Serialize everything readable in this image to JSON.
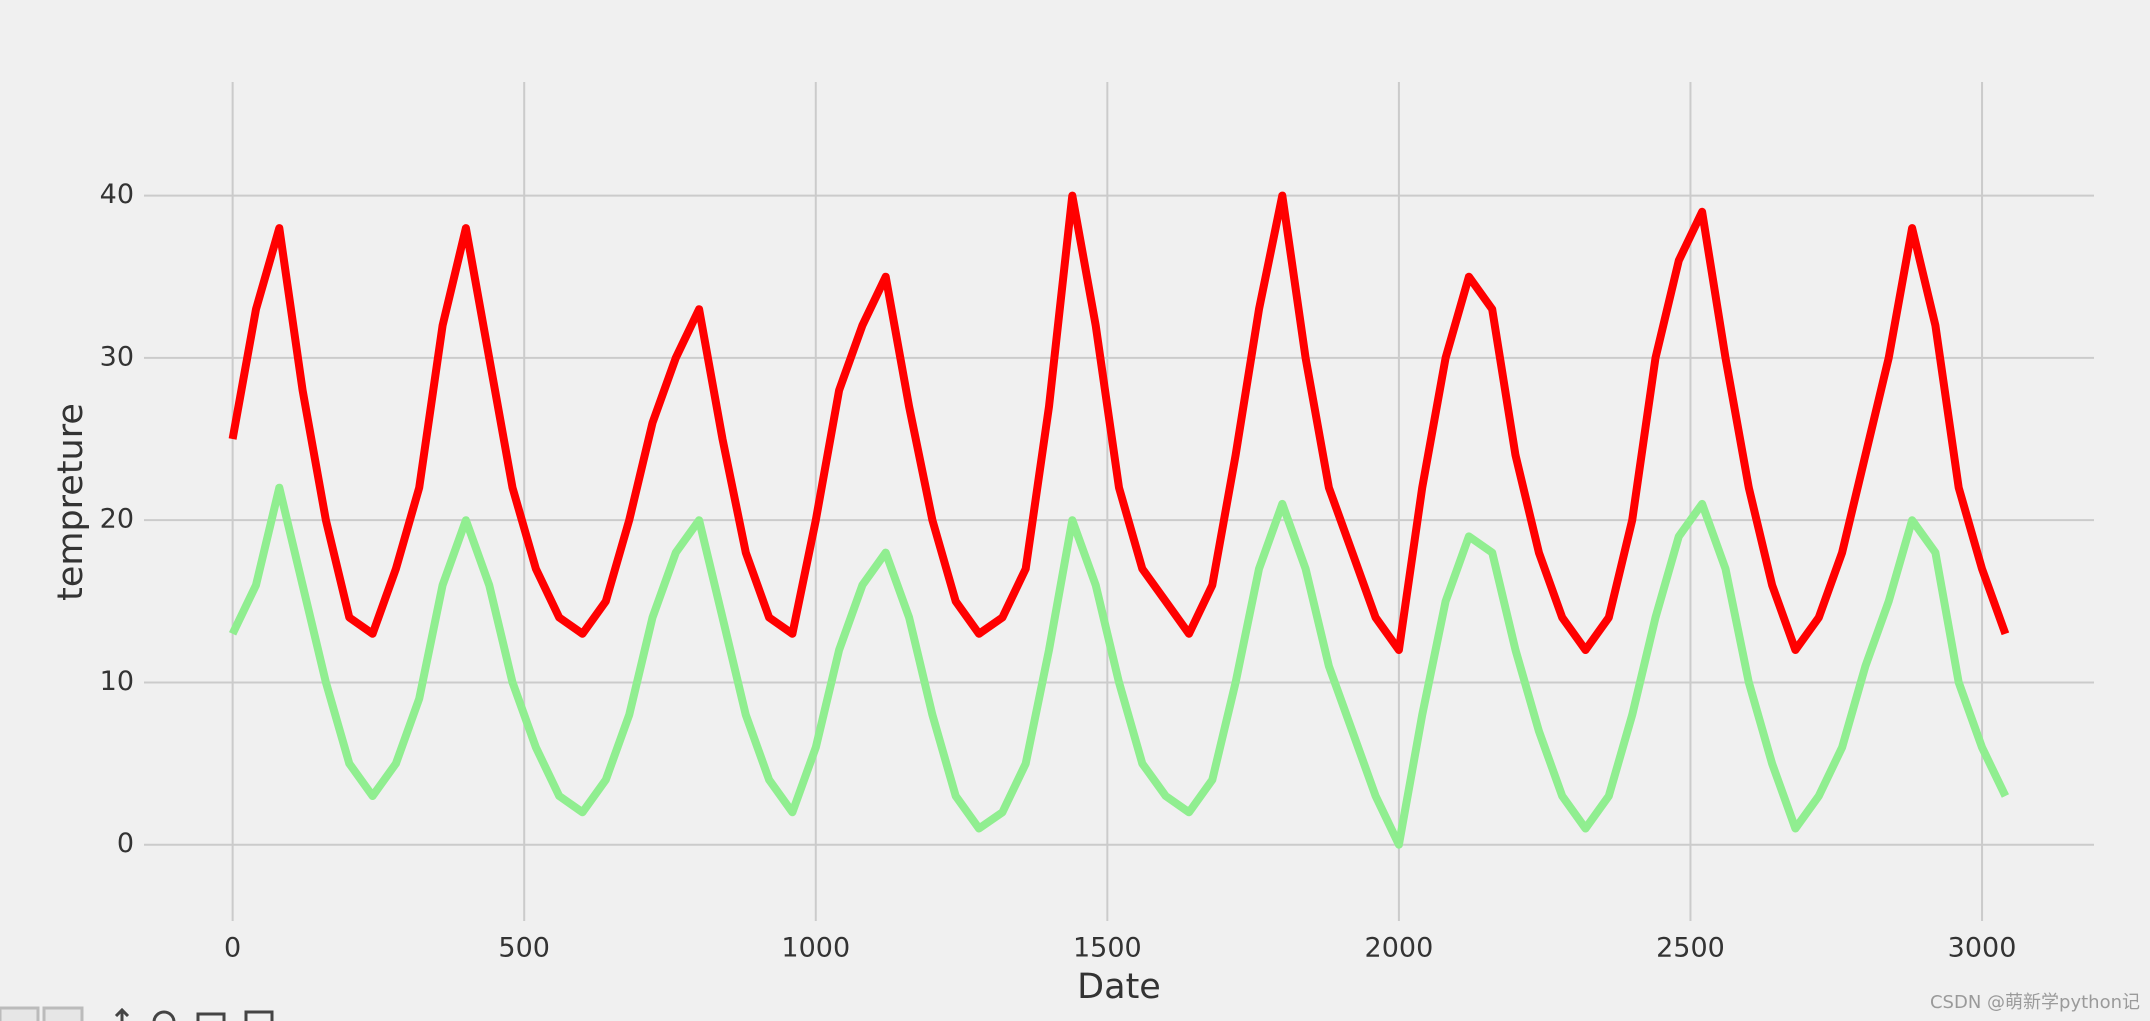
{
  "chart_data": {
    "type": "line",
    "xlabel": "Date",
    "ylabel": "tempreture",
    "annotation": "CSDN @萌新学python记",
    "x": [
      0,
      40,
      80,
      120,
      160,
      200,
      240,
      280,
      320,
      360,
      400,
      440,
      480,
      520,
      560,
      600,
      640,
      680,
      720,
      760,
      800,
      840,
      880,
      920,
      960,
      1000,
      1040,
      1080,
      1120,
      1160,
      1200,
      1240,
      1280,
      1320,
      1360,
      1400,
      1440,
      1480,
      1520,
      1560,
      1600,
      1640,
      1680,
      1720,
      1760,
      1800,
      1840,
      1880,
      1920,
      1960,
      2000,
      2040,
      2080,
      2120,
      2160,
      2200,
      2240,
      2280,
      2320,
      2360,
      2400,
      2440,
      2480,
      2520,
      2560,
      2600,
      2640,
      2680,
      2720,
      2760,
      2800,
      2840,
      2880,
      2920,
      2960,
      3000,
      3040
    ],
    "series": [
      {
        "color": "#90ee90",
        "values": [
          13,
          16,
          22,
          16,
          10,
          5,
          3,
          5,
          9,
          16,
          20,
          16,
          10,
          6,
          3,
          2,
          4,
          8,
          14,
          18,
          20,
          14,
          8,
          4,
          2,
          6,
          12,
          16,
          18,
          14,
          8,
          3,
          1,
          2,
          5,
          12,
          20,
          16,
          10,
          5,
          3,
          2,
          4,
          10,
          17,
          21,
          17,
          11,
          7,
          3,
          0,
          8,
          15,
          19,
          18,
          12,
          7,
          3,
          1,
          3,
          8,
          14,
          19,
          21,
          17,
          10,
          5,
          1,
          3,
          6,
          11,
          15,
          20,
          18,
          10,
          6,
          3
        ]
      },
      {
        "color": "#ff0000",
        "values": [
          25,
          33,
          38,
          28,
          20,
          14,
          13,
          17,
          22,
          32,
          38,
          30,
          22,
          17,
          14,
          13,
          15,
          20,
          26,
          30,
          33,
          25,
          18,
          14,
          13,
          20,
          28,
          32,
          35,
          27,
          20,
          15,
          13,
          14,
          17,
          27,
          40,
          32,
          22,
          17,
          15,
          13,
          16,
          24,
          33,
          40,
          30,
          22,
          18,
          14,
          12,
          22,
          30,
          35,
          33,
          24,
          18,
          14,
          12,
          14,
          20,
          30,
          36,
          39,
          30,
          22,
          16,
          12,
          14,
          18,
          24,
          30,
          38,
          32,
          22,
          17,
          13
        ]
      }
    ],
    "xlim": [
      -152,
      3192
    ],
    "ylim": [
      -4.7,
      47.0
    ],
    "xticks": [
      0,
      500,
      1000,
      1500,
      2000,
      2500,
      3000
    ],
    "yticks": [
      0,
      10,
      20,
      30,
      40
    ],
    "grid": true
  }
}
